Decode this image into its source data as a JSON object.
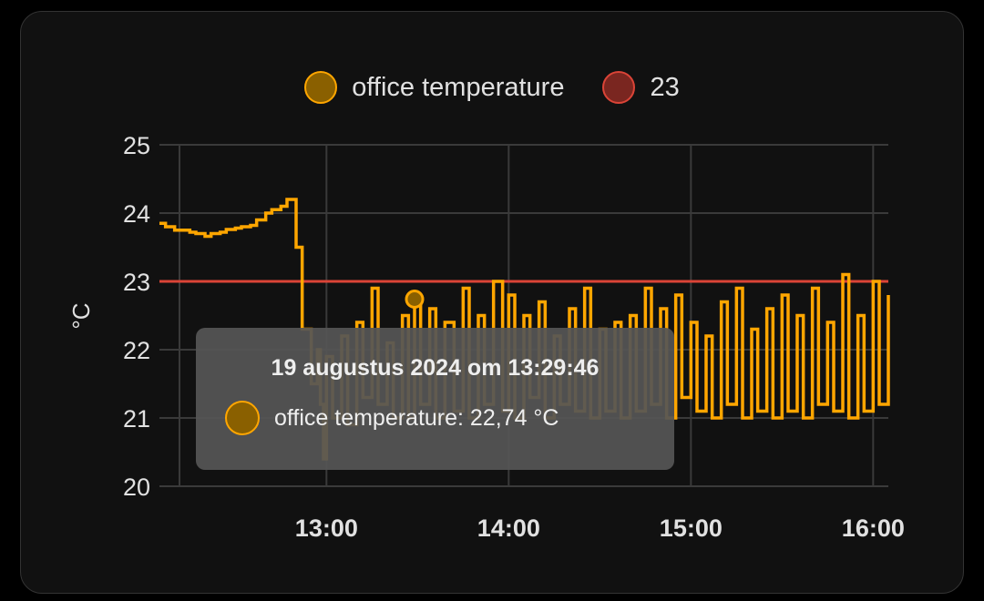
{
  "chart_data": {
    "type": "line",
    "ylabel": "°C",
    "ylim": [
      20,
      25
    ],
    "yticks": [
      "20",
      "21",
      "22",
      "23",
      "24",
      "25"
    ],
    "xlim": [
      "12:05",
      "16:05"
    ],
    "xticks": [
      {
        "t": "13:00",
        "label": "13:00"
      },
      {
        "t": "14:00",
        "label": "14:00"
      },
      {
        "t": "15:00",
        "label": "15:00"
      },
      {
        "t": "16:00",
        "label": "16:00"
      }
    ],
    "grid": true,
    "legend": "top",
    "series": [
      {
        "name": "office temperature",
        "color": "#ffa600",
        "fill": "#8a6000",
        "x": [
          "12:05",
          "12:07",
          "12:10",
          "12:12",
          "12:15",
          "12:17",
          "12:20",
          "12:22",
          "12:25",
          "12:27",
          "12:30",
          "12:32",
          "12:35",
          "12:37",
          "12:40",
          "12:42",
          "12:45",
          "12:47",
          "12:50",
          "12:52",
          "12:55",
          "12:57",
          "12:58",
          "12:59",
          "13:00",
          "13:02",
          "13:05",
          "13:07",
          "13:10",
          "13:12",
          "13:15",
          "13:17",
          "13:20",
          "13:22",
          "13:25",
          "13:27",
          "13:29",
          "13:31",
          "13:34",
          "13:36",
          "13:39",
          "13:42",
          "13:45",
          "13:47",
          "13:50",
          "13:52",
          "13:55",
          "13:58",
          "14:00",
          "14:02",
          "14:05",
          "14:07",
          "14:10",
          "14:12",
          "14:15",
          "14:17",
          "14:20",
          "14:22",
          "14:25",
          "14:27",
          "14:30",
          "14:32",
          "14:35",
          "14:37",
          "14:40",
          "14:42",
          "14:45",
          "14:47",
          "14:50",
          "14:52",
          "14:55",
          "14:57",
          "15:00",
          "15:02",
          "15:05",
          "15:07",
          "15:10",
          "15:12",
          "15:15",
          "15:17",
          "15:20",
          "15:22",
          "15:25",
          "15:27",
          "15:30",
          "15:32",
          "15:35",
          "15:37",
          "15:40",
          "15:42",
          "15:45",
          "15:47",
          "15:50",
          "15:52",
          "15:55",
          "15:57",
          "16:00",
          "16:02",
          "16:05"
        ],
        "values": [
          23.85,
          23.8,
          23.75,
          23.75,
          23.72,
          23.7,
          23.66,
          23.7,
          23.72,
          23.76,
          23.78,
          23.8,
          23.82,
          23.9,
          24.0,
          24.05,
          24.1,
          24.2,
          23.5,
          22.3,
          21.5,
          22.0,
          21.2,
          20.4,
          21.9,
          21.0,
          22.2,
          20.9,
          22.4,
          21.3,
          22.9,
          21.2,
          22.1,
          21.0,
          22.5,
          21.0,
          22.74,
          21.2,
          22.6,
          21.0,
          22.4,
          21.1,
          22.9,
          21.0,
          22.5,
          21.2,
          23.0,
          21.1,
          22.8,
          21.0,
          22.5,
          21.3,
          22.7,
          21.0,
          22.2,
          21.2,
          22.6,
          21.1,
          22.9,
          21.0,
          22.3,
          21.1,
          22.4,
          21.0,
          22.5,
          21.1,
          22.9,
          21.2,
          22.6,
          21.0,
          22.8,
          21.3,
          22.4,
          21.1,
          22.2,
          21.0,
          22.7,
          21.2,
          22.9,
          21.0,
          22.3,
          21.1,
          22.6,
          21.0,
          22.8,
          21.1,
          22.5,
          21.0,
          22.9,
          21.2,
          22.4,
          21.1,
          23.1,
          21.0,
          22.5,
          21.1,
          23.0,
          21.2,
          22.8
        ]
      },
      {
        "name": "23",
        "color": "#db4437",
        "fill": "#7a2620",
        "x": [
          "12:05",
          "16:05"
        ],
        "values": [
          23,
          23
        ]
      }
    ]
  },
  "legend": {
    "items": [
      {
        "label": "office temperature",
        "color": "#ffa600",
        "fill": "#8a6000"
      },
      {
        "label": "23",
        "color": "#db4437",
        "fill": "#7a2620"
      }
    ]
  },
  "tooltip": {
    "title": "19 augustus 2024 om 13:29:46",
    "series_label": "office temperature: 22,74 °C",
    "color": "#ffa600",
    "point": {
      "t": "13:29",
      "value": 22.74
    }
  }
}
